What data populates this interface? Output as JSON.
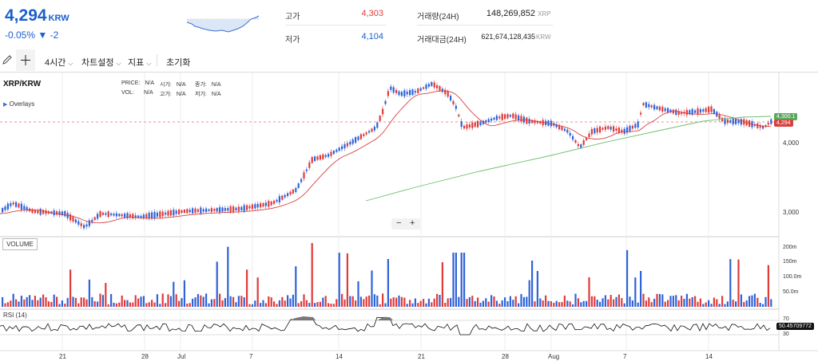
{
  "header": {
    "price": "4,294",
    "currency": "KRW",
    "change": "-0.05% ▼ -2",
    "high_label": "고가",
    "high_value": "4,303",
    "low_label": "저가",
    "low_value": "4,104",
    "volume_label": "거래량(24H)",
    "volume_value": "148,269,852",
    "volume_unit": "XRP",
    "amount_label": "거래대금(24H)",
    "amount_value": "621,674,128,435",
    "amount_unit": "KRW"
  },
  "toolbar": {
    "interval": "4시간",
    "chart_settings": "차트설정",
    "indicators": "지표",
    "reset": "초기화"
  },
  "chart": {
    "symbol": "XRP/KRW",
    "overlays": "Overlays",
    "info_labels": [
      "PRICE:",
      "시가:",
      "종가:",
      "VOL:",
      "고가:",
      "저가:"
    ],
    "info_value": "N/A",
    "price_ticks": [
      "4,000",
      "3,000"
    ],
    "volume_ticks": [
      "200m",
      "150m",
      "100.0m",
      "50.0m"
    ],
    "x_ticks": [
      "21",
      "28",
      "Jul",
      "7",
      "14",
      "21",
      "28",
      "Aug",
      "7",
      "14"
    ],
    "badge_ma": "4,300.1",
    "badge_price": "4,294",
    "volume_label": "VOLUME",
    "rsi_label": "RSI (14)",
    "rsi_value": "50.45709772",
    "rsi_ticks": [
      "70",
      "30"
    ],
    "zoom_minus": "−",
    "zoom_plus": "+",
    "colors": {
      "up": "#e03b3b",
      "down": "#2f63d8",
      "ma_fast": "#d94040",
      "ma_slow": "#6fbf6f"
    }
  }
}
